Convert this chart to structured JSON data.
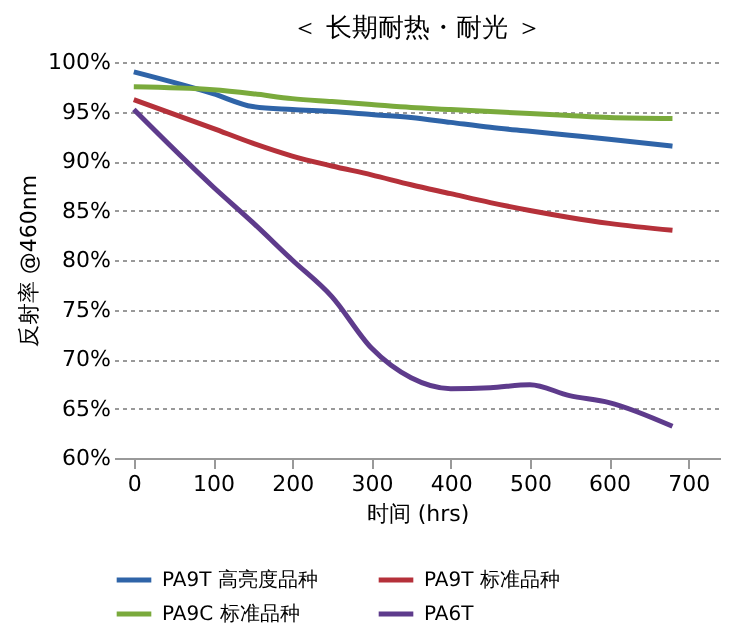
{
  "chart_data": {
    "type": "line",
    "title": "＜ 长期耐热・耐光 ＞",
    "xlabel": "时间 (hrs)",
    "ylabel": "反射率 @460nm",
    "x": [
      0,
      100,
      150,
      200,
      250,
      300,
      350,
      400,
      450,
      500,
      550,
      600,
      680
    ],
    "series": [
      {
        "name": "PA9T 高亮度品种",
        "color": "#2f64a8",
        "values": [
          99,
          96.8,
          95.5,
          95.2,
          95,
          94.7,
          94.4,
          93.9,
          93.4,
          93,
          92.6,
          92.2,
          91.5
        ]
      },
      {
        "name": "PA9T 标准品种",
        "color": "#b5313a",
        "values": [
          96.2,
          93.3,
          91.8,
          90.5,
          89.5,
          88.6,
          87.6,
          86.7,
          85.8,
          85,
          84.3,
          83.7,
          83
        ]
      },
      {
        "name": "PA9C 标准品种",
        "color": "#7aaa3c",
        "values": [
          97.5,
          97.2,
          96.8,
          96.3,
          96,
          95.7,
          95.4,
          95.2,
          95,
          94.8,
          94.6,
          94.4,
          94.3
        ]
      },
      {
        "name": "PA6T",
        "color": "#5e3b8c",
        "values": [
          95.2,
          87.4,
          83.8,
          80,
          76.3,
          71.1,
          68.1,
          67,
          67.1,
          67.4,
          66.3,
          65.6,
          63.2
        ]
      }
    ],
    "xlim": [
      -25,
      740
    ],
    "xticks": [
      0,
      100,
      200,
      300,
      400,
      500,
      600,
      700
    ],
    "ylim": [
      60,
      100
    ],
    "yticks": [
      {
        "value": 60,
        "label": "60%"
      },
      {
        "value": 65,
        "label": "65%"
      },
      {
        "value": 70,
        "label": "70%"
      },
      {
        "value": 75,
        "label": "75%"
      },
      {
        "value": 80,
        "label": "80%"
      },
      {
        "value": 85,
        "label": "85%"
      },
      {
        "value": 90,
        "label": "90%"
      },
      {
        "value": 95,
        "label": "95%"
      },
      {
        "value": 100,
        "label": "100%"
      }
    ],
    "grid": "y",
    "legend": "bottom",
    "marker": "none",
    "line_style": "solid"
  }
}
